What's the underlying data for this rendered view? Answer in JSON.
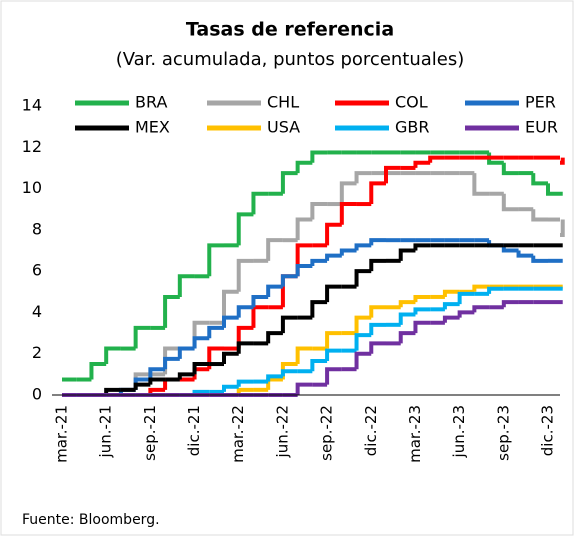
{
  "chart_data": {
    "type": "step",
    "title": "Tasas de referencia",
    "subtitle": "(Var. acumulada, puntos porcentuales)",
    "source": "Fuente: Bloomberg.",
    "categories": [
      "mar.-21",
      null,
      null,
      "jun.-21",
      null,
      null,
      "sep.-21",
      null,
      null,
      "dic.-21",
      null,
      null,
      "mar.-22",
      null,
      null,
      "jun.-22",
      null,
      null,
      "sep.-22",
      null,
      null,
      "dic.-22",
      null,
      null,
      "mar.-23",
      null,
      null,
      "jun.-23",
      null,
      null,
      "sep.-23",
      null,
      null,
      "dic.-23",
      null
    ],
    "ylim": [
      0,
      14
    ],
    "yticks": [
      0,
      2,
      4,
      6,
      8,
      10,
      12,
      14
    ],
    "grid": false,
    "series": [
      {
        "name": "BRA",
        "color": "#22b14c",
        "values": [
          0.75,
          0.75,
          1.5,
          2.25,
          2.25,
          3.25,
          3.25,
          4.75,
          5.75,
          5.75,
          7.25,
          7.25,
          8.75,
          9.75,
          9.75,
          10.75,
          11.25,
          11.75,
          11.75,
          11.75,
          11.75,
          11.75,
          11.75,
          11.75,
          11.75,
          11.75,
          11.75,
          11.75,
          11.75,
          11.25,
          10.75,
          10.75,
          10.25,
          9.75,
          9.75
        ]
      },
      {
        "name": "CHL",
        "color": "#a6a6a6",
        "values": [
          0,
          0,
          0,
          0,
          0.25,
          1,
          1,
          2.25,
          2.25,
          3.5,
          3.5,
          5,
          6.5,
          6.5,
          7.5,
          7.5,
          8.5,
          9.25,
          9.25,
          10.25,
          10.75,
          10.75,
          10.75,
          10.75,
          10.75,
          10.75,
          10.75,
          10.75,
          9.75,
          9.75,
          9,
          9,
          8.5,
          8.5,
          7.75
        ]
      },
      {
        "name": "COL",
        "color": "#ff0000",
        "values": [
          0,
          0,
          0,
          0,
          0,
          0,
          0.25,
          0.75,
          0.75,
          1.25,
          2.25,
          2.25,
          3.25,
          4.25,
          4.25,
          5.75,
          7.25,
          7.25,
          8.25,
          9.25,
          9.25,
          10.25,
          11,
          11,
          11.25,
          11.5,
          11.5,
          11.5,
          11.5,
          11.5,
          11.5,
          11.5,
          11.5,
          11.5,
          11.25
        ]
      },
      {
        "name": "PER",
        "color": "#1f6fc5",
        "values": [
          0,
          0,
          0,
          0,
          0.25,
          0.75,
          1.25,
          1.75,
          2.25,
          2.75,
          3.25,
          3.75,
          4.25,
          4.75,
          5.25,
          5.75,
          6.25,
          6.5,
          6.75,
          7,
          7.25,
          7.5,
          7.5,
          7.5,
          7.5,
          7.5,
          7.5,
          7.5,
          7.5,
          7.25,
          7,
          6.75,
          6.5,
          6.5,
          6.5
        ]
      },
      {
        "name": "MEX",
        "color": "#000000",
        "values": [
          0,
          0,
          0,
          0.25,
          0.25,
          0.5,
          0.75,
          0.75,
          1,
          1.5,
          1.5,
          2,
          2.5,
          2.5,
          3,
          3.75,
          3.75,
          4.5,
          5.25,
          5.25,
          6,
          6.5,
          6.5,
          7,
          7.25,
          7.25,
          7.25,
          7.25,
          7.25,
          7.25,
          7.25,
          7.25,
          7.25,
          7.25,
          7.25
        ]
      },
      {
        "name": "USA",
        "color": "#ffc000",
        "values": [
          0,
          0,
          0,
          0,
          0,
          0,
          0,
          0,
          0,
          0,
          0,
          0,
          0.25,
          0.25,
          0.75,
          1.5,
          2.25,
          2.25,
          3,
          3,
          3.75,
          4.25,
          4.25,
          4.5,
          4.75,
          4.75,
          5,
          5,
          5.25,
          5.25,
          5.25,
          5.25,
          5.25,
          5.25,
          5.25
        ]
      },
      {
        "name": "GBR",
        "color": "#00b0f0",
        "values": [
          0,
          0,
          0,
          0,
          0,
          0,
          0,
          0,
          0,
          0.15,
          0.15,
          0.4,
          0.65,
          0.65,
          0.9,
          1.15,
          1.15,
          1.65,
          2.15,
          2.15,
          2.9,
          3.4,
          3.4,
          3.9,
          4.15,
          4.15,
          4.4,
          4.9,
          4.9,
          5.15,
          5.15,
          5.15,
          5.15,
          5.15,
          5.15
        ]
      },
      {
        "name": "EUR",
        "color": "#7030a0",
        "values": [
          0,
          0,
          0,
          0,
          0,
          0,
          0,
          0,
          0,
          0,
          0,
          0,
          0,
          0,
          0,
          0,
          0.5,
          0.5,
          1.25,
          1.25,
          2,
          2.5,
          2.5,
          3,
          3.5,
          3.5,
          3.75,
          4,
          4.25,
          4.25,
          4.5,
          4.5,
          4.5,
          4.5,
          4.5
        ]
      }
    ]
  }
}
